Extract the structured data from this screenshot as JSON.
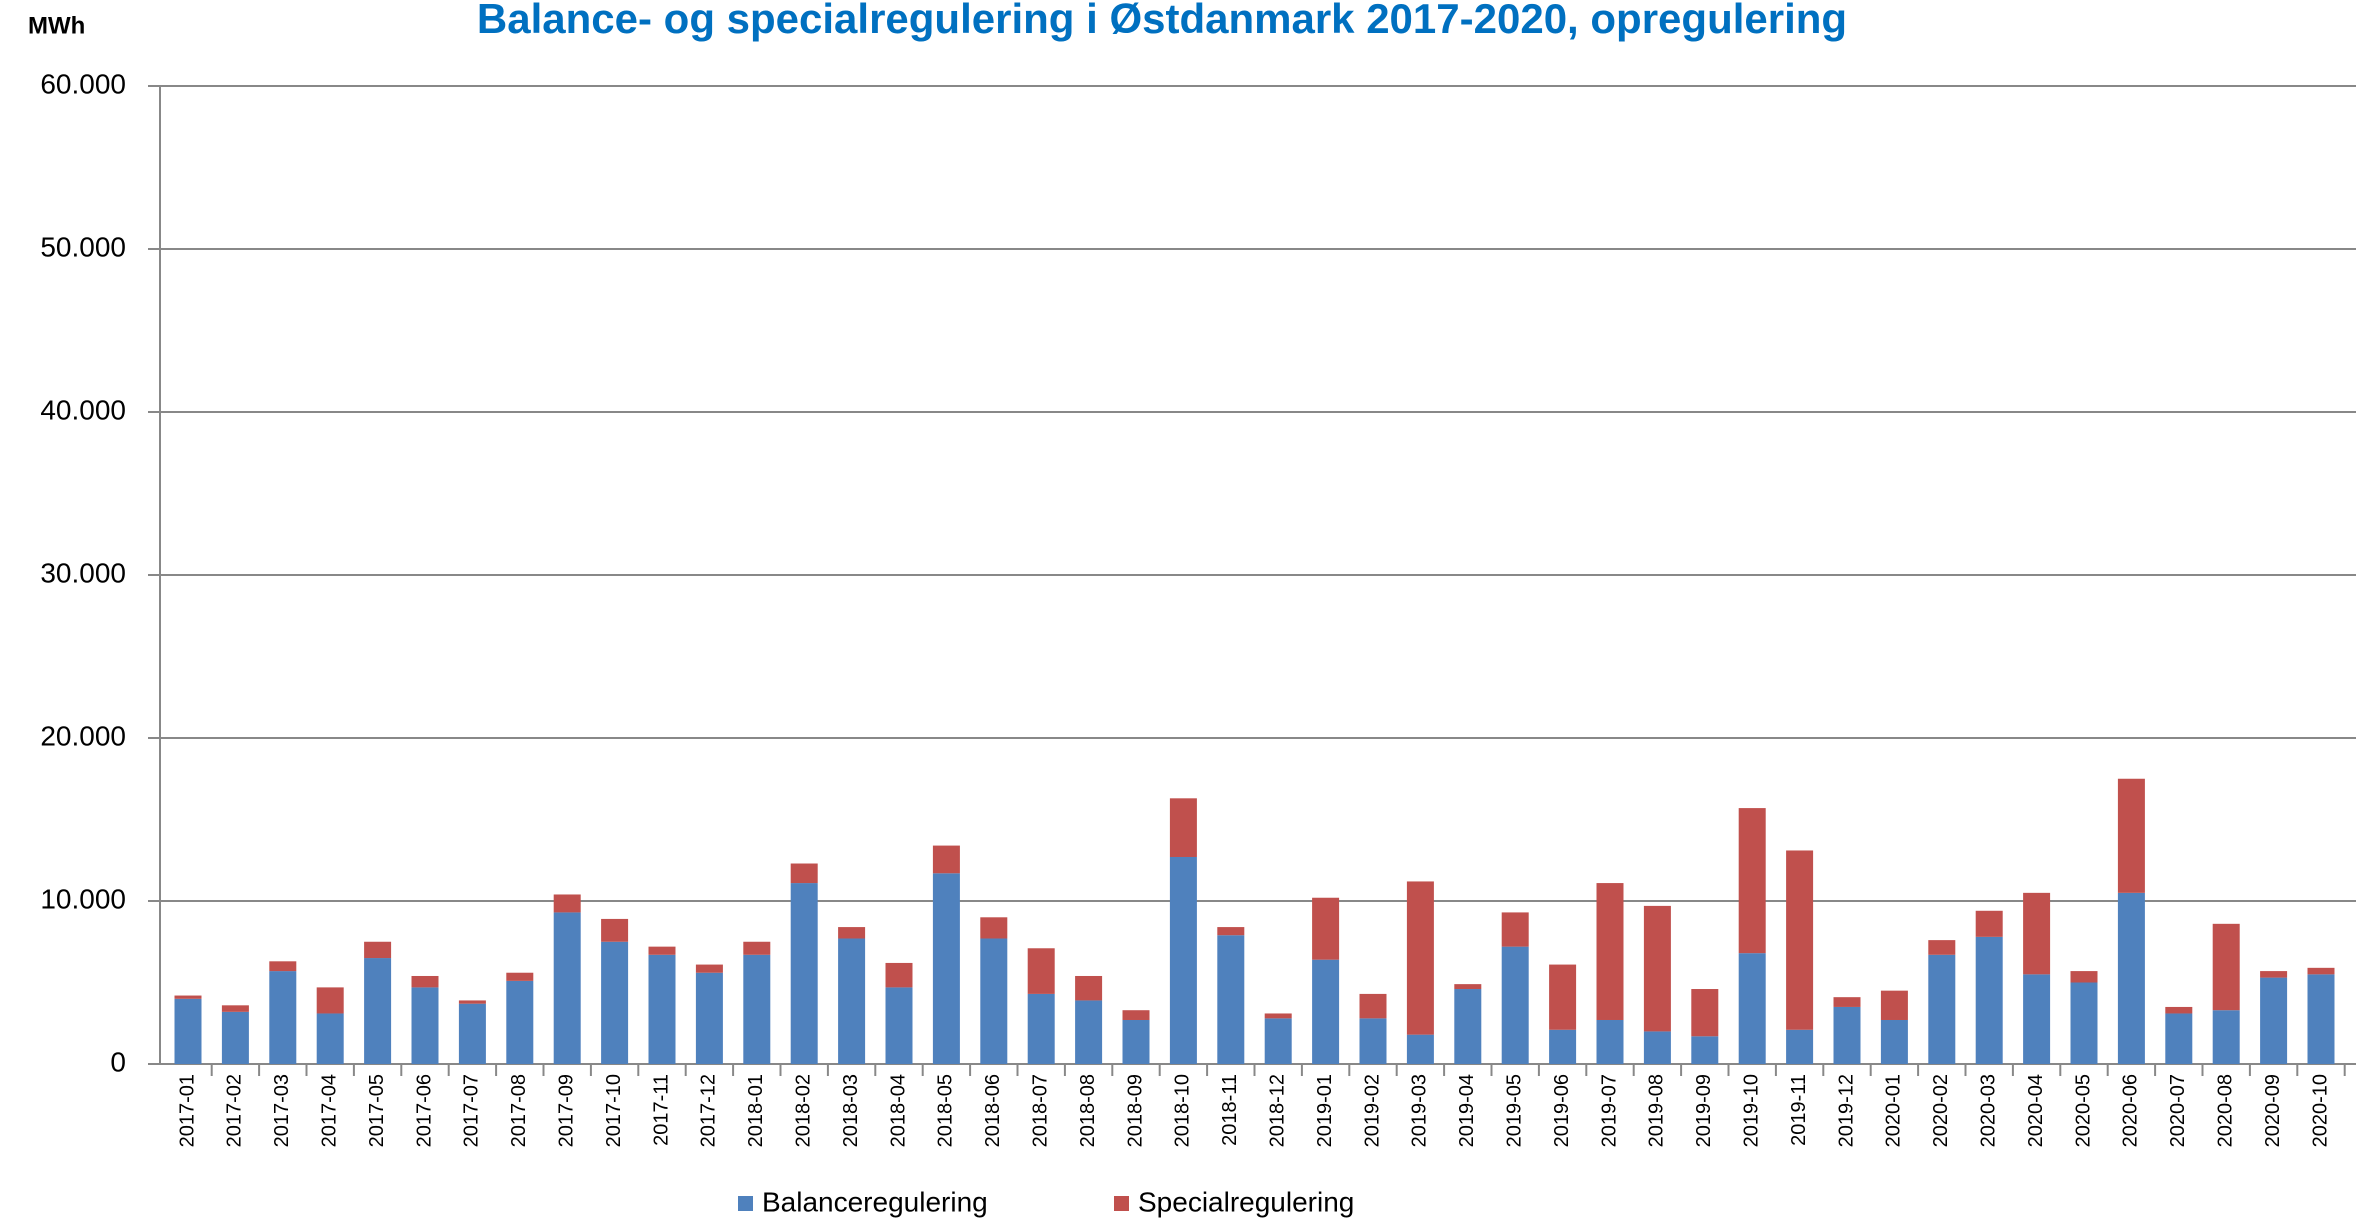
{
  "chart_data": {
    "type": "stacked_bar",
    "title": "Balance- og specialregulering i Østdanmark 2017-2020, opregulering",
    "y_label": "MWh",
    "categories": [
      "2017-01",
      "2017-02",
      "2017-03",
      "2017-04",
      "2017-05",
      "2017-06",
      "2017-07",
      "2017-08",
      "2017-09",
      "2017-10",
      "2017-11",
      "2017-12",
      "2018-01",
      "2018-02",
      "2018-03",
      "2018-04",
      "2018-05",
      "2018-06",
      "2018-07",
      "2018-08",
      "2018-09",
      "2018-10",
      "2018-11",
      "2018-12",
      "2019-01",
      "2019-02",
      "2019-03",
      "2019-04",
      "2019-05",
      "2019-06",
      "2019-07",
      "2019-08",
      "2019-09",
      "2019-10",
      "2019-11",
      "2019-12",
      "2020-01",
      "2020-02",
      "2020-03",
      "2020-04",
      "2020-05",
      "2020-06",
      "2020-07",
      "2020-08",
      "2020-09",
      "2020-10"
    ],
    "series": [
      {
        "name": "Balanceregulering",
        "color": "#4f81bd",
        "values": [
          4000,
          3200,
          5700,
          3100,
          6500,
          4700,
          3700,
          5100,
          9300,
          7500,
          6700,
          5600,
          6700,
          11100,
          7700,
          4700,
          11700,
          7700,
          4300,
          3900,
          2700,
          12700,
          7900,
          2800,
          6400,
          2800,
          1800,
          4600,
          7200,
          2100,
          2700,
          2000,
          1700,
          6800,
          2100,
          3500,
          2700,
          6700,
          7800,
          5500,
          5000,
          10500,
          3100,
          3300,
          5300,
          5500
        ]
      },
      {
        "name": "Specialregulering",
        "color": "#c0504d",
        "values": [
          200,
          400,
          600,
          1600,
          1000,
          700,
          200,
          500,
          1100,
          1400,
          500,
          500,
          800,
          1200,
          700,
          1500,
          1700,
          1300,
          2800,
          1500,
          600,
          3600,
          500,
          300,
          3800,
          1500,
          9400,
          300,
          2100,
          4000,
          8400,
          7700,
          2900,
          8900,
          11000,
          600,
          1800,
          900,
          1600,
          5000,
          700,
          7000,
          400,
          5300,
          400,
          400
        ]
      }
    ],
    "ylim": [
      0,
      60000
    ],
    "yticks": [
      0,
      {
        "value": 10000,
        "label": "10.000"
      },
      {
        "value": 20000,
        "label": "20.000"
      },
      {
        "value": 30000,
        "label": "30.000"
      },
      {
        "value": 40000,
        "label": "40.000"
      },
      {
        "value": 50000,
        "label": "50.000"
      },
      {
        "value": 60000,
        "label": "60.000"
      }
    ],
    "grid": true,
    "legend": "bottom"
  }
}
